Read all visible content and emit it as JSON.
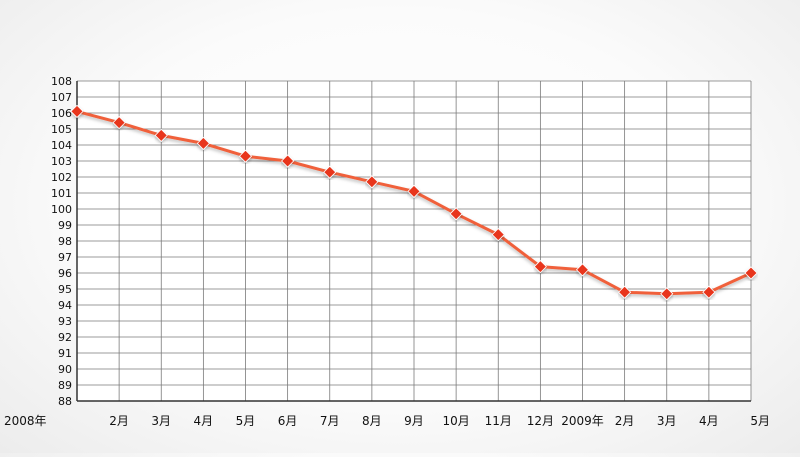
{
  "chart_data": {
    "type": "line",
    "title": "",
    "xlabel": "",
    "ylabel": "",
    "categories": [
      "2008年",
      "2月",
      "3月",
      "4月",
      "5月",
      "6月",
      "7月",
      "8月",
      "9月",
      "10月",
      "11月",
      "12月",
      "2009年",
      "2月",
      "3月",
      "4月",
      "5月"
    ],
    "series": [
      {
        "values": [
          106.1,
          105.4,
          104.6,
          104.1,
          103.3,
          103.0,
          102.3,
          101.7,
          101.1,
          99.7,
          98.4,
          96.4,
          96.2,
          94.8,
          94.7,
          94.8,
          96.0
        ]
      }
    ],
    "ylim": [
      88,
      108
    ],
    "y_ticks": [
      88,
      89,
      90,
      91,
      92,
      93,
      94,
      95,
      96,
      97,
      98,
      99,
      100,
      101,
      102,
      103,
      104,
      105,
      106,
      107,
      108
    ],
    "grid": true,
    "colors": {
      "line": "#f0603a",
      "marker": "#e8341c",
      "grid": "#7a7a7a",
      "axis": "#333333"
    },
    "marker": "diamond"
  }
}
